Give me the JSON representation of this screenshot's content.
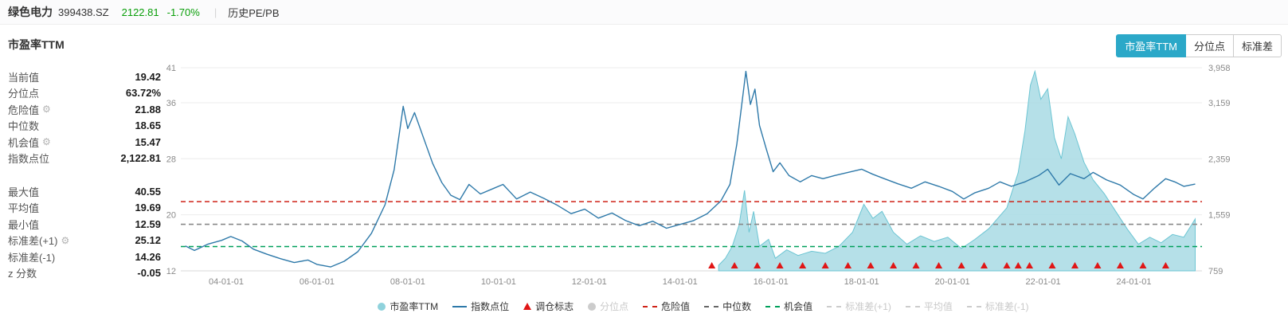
{
  "header": {
    "name": "绿色电力",
    "code": "399438.SZ",
    "price": "2122.81",
    "change": "-1.70%",
    "divider": "|",
    "nav": "历史PE/PB"
  },
  "section": {
    "title": "市盈率TTM",
    "tabs": [
      {
        "label": "市盈率TTM",
        "active": true
      },
      {
        "label": "分位点",
        "active": false
      },
      {
        "label": "标准差",
        "active": false
      }
    ]
  },
  "stats": {
    "groups": [
      [
        {
          "label": "当前值",
          "value": "19.42"
        },
        {
          "label": "分位点",
          "value": "63.72%"
        },
        {
          "label": "危险值",
          "value": "21.88",
          "gear": true
        },
        {
          "label": "中位数",
          "value": "18.65"
        },
        {
          "label": "机会值",
          "value": "15.47",
          "gear": true
        },
        {
          "label": "指数点位",
          "value": "2,122.81"
        }
      ],
      [
        {
          "label": "最大值",
          "value": "40.55"
        },
        {
          "label": "平均值",
          "value": "19.69"
        },
        {
          "label": "最小值",
          "value": "12.59"
        },
        {
          "label": "标准差(+1)",
          "value": "25.12",
          "gear": true
        },
        {
          "label": "标准差(-1)",
          "value": "14.26"
        },
        {
          "label": "z 分数",
          "value": "-0.05"
        }
      ]
    ]
  },
  "chart_data": {
    "type": "line",
    "title": "市盈率TTM",
    "time_range": [
      2003.0,
      2025.5
    ],
    "x_ticks": [
      {
        "label": "04-01-01",
        "t": 2004
      },
      {
        "label": "06-01-01",
        "t": 2006
      },
      {
        "label": "08-01-01",
        "t": 2008
      },
      {
        "label": "10-01-01",
        "t": 2010
      },
      {
        "label": "12-01-01",
        "t": 2012
      },
      {
        "label": "14-01-01",
        "t": 2014
      },
      {
        "label": "16-01-01",
        "t": 2016
      },
      {
        "label": "18-01-01",
        "t": 2018
      },
      {
        "label": "20-01-01",
        "t": 2020
      },
      {
        "label": "22-01-01",
        "t": 2022
      },
      {
        "label": "24-01-01",
        "t": 2024
      }
    ],
    "left_axis": {
      "range": [
        12,
        41
      ],
      "ticks": [
        12,
        20,
        28,
        36,
        41
      ]
    },
    "right_axis": {
      "range": [
        759,
        3958
      ],
      "tick_labels": [
        "759",
        "1,559",
        "2,359",
        "3,159",
        "3,958"
      ]
    },
    "hlines": [
      {
        "name": "危险值",
        "value": 21.88,
        "color": "#CF2318"
      },
      {
        "name": "中位数",
        "value": 18.65,
        "color": "#888888"
      },
      {
        "name": "机会值",
        "value": 15.47,
        "color": "#00A05A"
      }
    ],
    "series": [
      {
        "name": "市盈率TTM",
        "type": "area",
        "axis": "left",
        "stroke": "#6CC5D3",
        "fill": "#A8DBE4",
        "points": [
          [
            2014.85,
            12.8
          ],
          [
            2015.0,
            13.8
          ],
          [
            2015.15,
            15.5
          ],
          [
            2015.3,
            18.5
          ],
          [
            2015.42,
            23.5
          ],
          [
            2015.52,
            17.5
          ],
          [
            2015.62,
            20.5
          ],
          [
            2015.75,
            15.5
          ],
          [
            2015.95,
            16.5
          ],
          [
            2016.1,
            13.8
          ],
          [
            2016.35,
            15.0
          ],
          [
            2016.6,
            14.2
          ],
          [
            2016.9,
            14.8
          ],
          [
            2017.2,
            14.5
          ],
          [
            2017.5,
            15.5
          ],
          [
            2017.8,
            17.5
          ],
          [
            2018.05,
            21.5
          ],
          [
            2018.25,
            19.5
          ],
          [
            2018.45,
            20.5
          ],
          [
            2018.7,
            17.5
          ],
          [
            2019.0,
            15.8
          ],
          [
            2019.3,
            17.0
          ],
          [
            2019.6,
            16.2
          ],
          [
            2019.9,
            16.8
          ],
          [
            2020.2,
            15.2
          ],
          [
            2020.5,
            16.5
          ],
          [
            2020.8,
            18.0
          ],
          [
            2021.0,
            19.5
          ],
          [
            2021.2,
            21.0
          ],
          [
            2021.45,
            26.0
          ],
          [
            2021.6,
            32.0
          ],
          [
            2021.72,
            38.5
          ],
          [
            2021.82,
            40.5
          ],
          [
            2021.95,
            36.5
          ],
          [
            2022.1,
            38.0
          ],
          [
            2022.25,
            31.0
          ],
          [
            2022.4,
            28.0
          ],
          [
            2022.55,
            34.0
          ],
          [
            2022.7,
            31.5
          ],
          [
            2022.9,
            27.5
          ],
          [
            2023.1,
            25.0
          ],
          [
            2023.35,
            23.0
          ],
          [
            2023.6,
            20.5
          ],
          [
            2023.85,
            18.0
          ],
          [
            2024.1,
            15.8
          ],
          [
            2024.35,
            16.8
          ],
          [
            2024.6,
            16.0
          ],
          [
            2024.85,
            17.2
          ],
          [
            2025.1,
            16.8
          ],
          [
            2025.35,
            19.4
          ]
        ]
      },
      {
        "name": "指数点位",
        "type": "line",
        "axis": "right",
        "stroke": "#2E79A9",
        "points": [
          [
            2003.1,
            1150
          ],
          [
            2003.3,
            1080
          ],
          [
            2003.6,
            1180
          ],
          [
            2003.9,
            1240
          ],
          [
            2004.1,
            1300
          ],
          [
            2004.35,
            1230
          ],
          [
            2004.6,
            1100
          ],
          [
            2004.9,
            1020
          ],
          [
            2005.2,
            950
          ],
          [
            2005.5,
            890
          ],
          [
            2005.8,
            930
          ],
          [
            2006.0,
            860
          ],
          [
            2006.3,
            820
          ],
          [
            2006.6,
            910
          ],
          [
            2006.9,
            1060
          ],
          [
            2007.2,
            1350
          ],
          [
            2007.5,
            1800
          ],
          [
            2007.7,
            2350
          ],
          [
            2007.9,
            3350
          ],
          [
            2008.0,
            3000
          ],
          [
            2008.15,
            3250
          ],
          [
            2008.35,
            2850
          ],
          [
            2008.55,
            2450
          ],
          [
            2008.75,
            2150
          ],
          [
            2008.95,
            1950
          ],
          [
            2009.15,
            1880
          ],
          [
            2009.35,
            2120
          ],
          [
            2009.6,
            1970
          ],
          [
            2009.9,
            2060
          ],
          [
            2010.1,
            2120
          ],
          [
            2010.4,
            1890
          ],
          [
            2010.7,
            2000
          ],
          [
            2011.0,
            1900
          ],
          [
            2011.3,
            1790
          ],
          [
            2011.6,
            1660
          ],
          [
            2011.9,
            1730
          ],
          [
            2012.2,
            1590
          ],
          [
            2012.5,
            1670
          ],
          [
            2012.8,
            1550
          ],
          [
            2013.1,
            1470
          ],
          [
            2013.4,
            1540
          ],
          [
            2013.7,
            1430
          ],
          [
            2014.0,
            1490
          ],
          [
            2014.3,
            1550
          ],
          [
            2014.6,
            1660
          ],
          [
            2014.9,
            1860
          ],
          [
            2015.1,
            2120
          ],
          [
            2015.25,
            2750
          ],
          [
            2015.45,
            3900
          ],
          [
            2015.55,
            3380
          ],
          [
            2015.65,
            3620
          ],
          [
            2015.75,
            3050
          ],
          [
            2015.9,
            2680
          ],
          [
            2016.05,
            2320
          ],
          [
            2016.2,
            2460
          ],
          [
            2016.4,
            2260
          ],
          [
            2016.65,
            2160
          ],
          [
            2016.9,
            2260
          ],
          [
            2017.15,
            2210
          ],
          [
            2017.4,
            2260
          ],
          [
            2017.7,
            2310
          ],
          [
            2018.0,
            2360
          ],
          [
            2018.25,
            2280
          ],
          [
            2018.5,
            2210
          ],
          [
            2018.8,
            2130
          ],
          [
            2019.1,
            2060
          ],
          [
            2019.4,
            2160
          ],
          [
            2019.7,
            2090
          ],
          [
            2020.0,
            2010
          ],
          [
            2020.25,
            1890
          ],
          [
            2020.5,
            1990
          ],
          [
            2020.8,
            2060
          ],
          [
            2021.05,
            2160
          ],
          [
            2021.3,
            2090
          ],
          [
            2021.6,
            2160
          ],
          [
            2021.9,
            2260
          ],
          [
            2022.1,
            2360
          ],
          [
            2022.35,
            2110
          ],
          [
            2022.6,
            2290
          ],
          [
            2022.9,
            2210
          ],
          [
            2023.1,
            2310
          ],
          [
            2023.4,
            2190
          ],
          [
            2023.7,
            2110
          ],
          [
            2024.0,
            1960
          ],
          [
            2024.2,
            1890
          ],
          [
            2024.45,
            2060
          ],
          [
            2024.7,
            2210
          ],
          [
            2024.9,
            2160
          ],
          [
            2025.1,
            2090
          ],
          [
            2025.35,
            2125
          ]
        ]
      },
      {
        "name": "调仓标志",
        "type": "markers",
        "color": "#E01616",
        "x": [
          2014.7,
          2015.2,
          2015.7,
          2016.2,
          2016.7,
          2017.2,
          2017.7,
          2018.2,
          2018.7,
          2019.2,
          2019.7,
          2020.2,
          2020.7,
          2021.2,
          2021.45,
          2021.7,
          2022.2,
          2022.7,
          2023.2,
          2023.7,
          2024.2,
          2024.7
        ]
      }
    ],
    "legend": [
      {
        "label": "市盈率TTM",
        "swatch": "circle",
        "color": "#8FD2DC",
        "disabled": false
      },
      {
        "label": "指数点位",
        "swatch": "line",
        "color": "#2E79A9",
        "disabled": false
      },
      {
        "label": "调仓标志",
        "swatch": "triangle",
        "color": "#E01616",
        "disabled": false
      },
      {
        "label": "分位点",
        "swatch": "circle",
        "color": "#cccccc",
        "disabled": true
      },
      {
        "label": "危险值",
        "swatch": "dash",
        "color": "#CF2318",
        "disabled": false
      },
      {
        "label": "中位数",
        "swatch": "dash",
        "color": "#666666",
        "disabled": false
      },
      {
        "label": "机会值",
        "swatch": "dash",
        "color": "#00A05A",
        "disabled": false
      },
      {
        "label": "标准差(+1)",
        "swatch": "dash",
        "color": "#cccccc",
        "disabled": true
      },
      {
        "label": "平均值",
        "swatch": "dash",
        "color": "#cccccc",
        "disabled": true
      },
      {
        "label": "标准差(-1)",
        "swatch": "dash",
        "color": "#cccccc",
        "disabled": true
      }
    ]
  }
}
